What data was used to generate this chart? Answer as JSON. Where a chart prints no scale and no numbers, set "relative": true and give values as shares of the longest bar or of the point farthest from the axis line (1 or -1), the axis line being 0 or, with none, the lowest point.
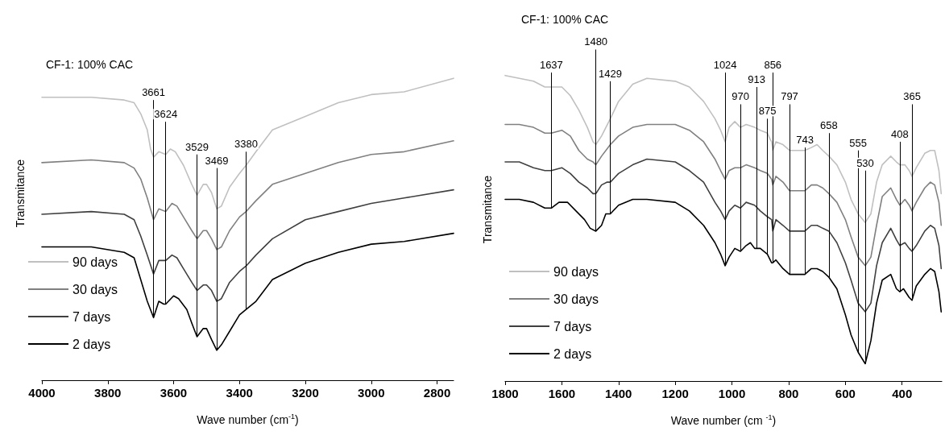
{
  "chart_data": [
    {
      "type": "line",
      "relative": true,
      "title": "CF-1: 100% CAC",
      "xlabel": "Wave number (cm$^{-1}$)",
      "ylabel": "Transmitance",
      "xlim": [
        4000,
        2750
      ],
      "xticks": [
        4000,
        3800,
        3600,
        3400,
        3200,
        3000,
        2800
      ],
      "legend": "bottom left",
      "grid": false,
      "marker": "none",
      "line_style": "solid",
      "series": [
        {
          "name": "90 days",
          "color": "#c0c0c0",
          "x": [
            4000,
            3850,
            3750,
            3720,
            3700,
            3680,
            3670,
            3661,
            3645,
            3624,
            3610,
            3595,
            3570,
            3545,
            3529,
            3510,
            3500,
            3485,
            3469,
            3455,
            3430,
            3400,
            3380,
            3350,
            3300,
            3200,
            3100,
            3000,
            2900,
            2750
          ],
          "values": [
            0.93,
            0.93,
            0.92,
            0.91,
            0.87,
            0.81,
            0.74,
            0.71,
            0.73,
            0.72,
            0.74,
            0.73,
            0.68,
            0.61,
            0.57,
            0.61,
            0.61,
            0.58,
            0.52,
            0.53,
            0.6,
            0.65,
            0.68,
            0.73,
            0.81,
            0.86,
            0.91,
            0.94,
            0.95,
            1.0
          ]
        },
        {
          "name": "30 days",
          "color": "#808080",
          "x": [
            4000,
            3850,
            3750,
            3720,
            3700,
            3680,
            3661,
            3645,
            3624,
            3605,
            3590,
            3570,
            3545,
            3529,
            3510,
            3500,
            3485,
            3469,
            3455,
            3430,
            3400,
            3380,
            3350,
            3300,
            3200,
            3100,
            3000,
            2900,
            2750
          ],
          "values": [
            0.69,
            0.7,
            0.69,
            0.67,
            0.63,
            0.56,
            0.48,
            0.52,
            0.51,
            0.54,
            0.53,
            0.49,
            0.44,
            0.41,
            0.44,
            0.44,
            0.41,
            0.37,
            0.38,
            0.44,
            0.49,
            0.51,
            0.55,
            0.61,
            0.65,
            0.69,
            0.72,
            0.73,
            0.77
          ]
        },
        {
          "name": "7 days",
          "color": "#404040",
          "x": [
            4000,
            3850,
            3750,
            3720,
            3700,
            3680,
            3661,
            3645,
            3624,
            3605,
            3590,
            3570,
            3545,
            3529,
            3510,
            3500,
            3485,
            3469,
            3455,
            3430,
            3400,
            3380,
            3350,
            3300,
            3200,
            3100,
            3000,
            2900,
            2750
          ],
          "values": [
            0.5,
            0.51,
            0.5,
            0.48,
            0.42,
            0.35,
            0.28,
            0.33,
            0.33,
            0.35,
            0.34,
            0.3,
            0.25,
            0.22,
            0.24,
            0.24,
            0.22,
            0.18,
            0.19,
            0.25,
            0.29,
            0.31,
            0.35,
            0.41,
            0.48,
            0.51,
            0.54,
            0.56,
            0.59
          ]
        },
        {
          "name": "2 days",
          "color": "#000000",
          "x": [
            4000,
            3850,
            3750,
            3720,
            3700,
            3680,
            3661,
            3645,
            3630,
            3624,
            3600,
            3585,
            3560,
            3545,
            3529,
            3510,
            3500,
            3485,
            3469,
            3455,
            3430,
            3400,
            3380,
            3350,
            3300,
            3200,
            3100,
            3000,
            2900,
            2750
          ],
          "values": [
            0.38,
            0.38,
            0.36,
            0.34,
            0.26,
            0.18,
            0.12,
            0.18,
            0.17,
            0.17,
            0.2,
            0.19,
            0.15,
            0.1,
            0.05,
            0.08,
            0.08,
            0.04,
            0,
            0.02,
            0.07,
            0.13,
            0.15,
            0.18,
            0.26,
            0.32,
            0.36,
            0.39,
            0.4,
            0.43
          ]
        }
      ],
      "ref_lines": [
        {
          "axis": "x",
          "value": 3661,
          "label": "3661"
        },
        {
          "axis": "x",
          "value": 3624,
          "label": "3624"
        },
        {
          "axis": "x",
          "value": 3529,
          "label": "3529"
        },
        {
          "axis": "x",
          "value": 3469,
          "label": "3469"
        },
        {
          "axis": "x",
          "value": 3380,
          "label": "3380"
        }
      ]
    },
    {
      "type": "line",
      "relative": true,
      "title": "CF-1: 100% CAC",
      "xlabel": "Wave number (cm $^{-1}$)",
      "ylabel": "Transmitance",
      "xlim": [
        1800,
        260
      ],
      "xticks": [
        1800,
        1600,
        1400,
        1200,
        1000,
        800,
        600,
        400
      ],
      "legend": "bottom left",
      "grid": false,
      "marker": "none",
      "line_style": "solid",
      "series": [
        {
          "name": "90 days",
          "color": "#c0c0c0",
          "x": [
            1800,
            1750,
            1700,
            1660,
            1637,
            1600,
            1570,
            1540,
            1510,
            1490,
            1480,
            1460,
            1429,
            1400,
            1350,
            1300,
            1200,
            1150,
            1100,
            1060,
            1040,
            1024,
            1010,
            990,
            970,
            950,
            920,
            900,
            875,
            866,
            860,
            856,
            845,
            820,
            797,
            770,
            743,
            720,
            700,
            680,
            658,
            630,
            600,
            580,
            555,
            530,
            510,
            490,
            470,
            440,
            420,
            408,
            390,
            375,
            365,
            350,
            320,
            300,
            285,
            270,
            262
          ],
          "values": [
            1.0,
            0.99,
            0.98,
            0.96,
            0.96,
            0.96,
            0.93,
            0.88,
            0.82,
            0.77,
            0.76,
            0.79,
            0.85,
            0.91,
            0.97,
            0.99,
            0.98,
            0.96,
            0.91,
            0.85,
            0.81,
            0.77,
            0.82,
            0.84,
            0.82,
            0.83,
            0.82,
            0.81,
            0.8,
            0.78,
            0.77,
            0.74,
            0.77,
            0.76,
            0.74,
            0.74,
            0.74,
            0.75,
            0.76,
            0.74,
            0.72,
            0.69,
            0.63,
            0.57,
            0.52,
            0.49,
            0.52,
            0.63,
            0.69,
            0.72,
            0.7,
            0.69,
            0.69,
            0.67,
            0.65,
            0.68,
            0.73,
            0.74,
            0.74,
            0.67,
            0.59
          ]
        },
        {
          "name": "30 days",
          "color": "#808080",
          "x": [
            1800,
            1750,
            1700,
            1660,
            1637,
            1600,
            1570,
            1540,
            1510,
            1490,
            1480,
            1460,
            1429,
            1400,
            1350,
            1300,
            1200,
            1150,
            1100,
            1060,
            1040,
            1024,
            1010,
            990,
            970,
            950,
            920,
            900,
            875,
            860,
            856,
            845,
            820,
            797,
            770,
            743,
            720,
            700,
            680,
            658,
            630,
            600,
            580,
            555,
            530,
            510,
            490,
            470,
            440,
            420,
            408,
            390,
            375,
            365,
            350,
            320,
            300,
            285,
            270,
            262
          ],
          "values": [
            0.83,
            0.83,
            0.82,
            0.8,
            0.8,
            0.81,
            0.79,
            0.74,
            0.71,
            0.7,
            0.69,
            0.72,
            0.76,
            0.79,
            0.82,
            0.83,
            0.83,
            0.81,
            0.77,
            0.71,
            0.67,
            0.64,
            0.67,
            0.68,
            0.68,
            0.69,
            0.68,
            0.67,
            0.66,
            0.64,
            0.62,
            0.65,
            0.63,
            0.6,
            0.6,
            0.6,
            0.62,
            0.62,
            0.61,
            0.59,
            0.56,
            0.5,
            0.44,
            0.37,
            0.34,
            0.37,
            0.48,
            0.58,
            0.61,
            0.57,
            0.55,
            0.57,
            0.55,
            0.53,
            0.56,
            0.61,
            0.63,
            0.62,
            0.56,
            0.48
          ]
        },
        {
          "name": "7 days",
          "color": "#404040",
          "x": [
            1800,
            1750,
            1700,
            1660,
            1637,
            1600,
            1570,
            1540,
            1510,
            1490,
            1480,
            1460,
            1440,
            1429,
            1400,
            1350,
            1300,
            1200,
            1150,
            1100,
            1060,
            1040,
            1024,
            1010,
            990,
            970,
            950,
            920,
            900,
            875,
            860,
            856,
            845,
            820,
            797,
            770,
            743,
            720,
            700,
            680,
            658,
            630,
            600,
            580,
            555,
            530,
            510,
            490,
            470,
            440,
            420,
            408,
            390,
            375,
            365,
            350,
            320,
            300,
            285,
            270,
            262
          ],
          "values": [
            0.7,
            0.7,
            0.68,
            0.67,
            0.67,
            0.68,
            0.66,
            0.63,
            0.61,
            0.59,
            0.59,
            0.62,
            0.63,
            0.63,
            0.66,
            0.69,
            0.71,
            0.7,
            0.67,
            0.63,
            0.56,
            0.53,
            0.5,
            0.53,
            0.55,
            0.54,
            0.56,
            0.55,
            0.53,
            0.51,
            0.5,
            0.46,
            0.5,
            0.48,
            0.46,
            0.46,
            0.46,
            0.48,
            0.48,
            0.47,
            0.46,
            0.42,
            0.35,
            0.29,
            0.21,
            0.18,
            0.21,
            0.34,
            0.42,
            0.47,
            0.43,
            0.41,
            0.42,
            0.4,
            0.39,
            0.41,
            0.46,
            0.48,
            0.47,
            0.41,
            0.33
          ]
        },
        {
          "name": "2 days",
          "color": "#000000",
          "x": [
            1800,
            1750,
            1700,
            1660,
            1637,
            1610,
            1580,
            1550,
            1520,
            1500,
            1480,
            1460,
            1445,
            1429,
            1400,
            1350,
            1300,
            1200,
            1150,
            1100,
            1060,
            1040,
            1024,
            1010,
            990,
            970,
            950,
            935,
            920,
            900,
            875,
            860,
            856,
            845,
            820,
            797,
            770,
            743,
            720,
            700,
            680,
            658,
            630,
            600,
            580,
            555,
            530,
            510,
            490,
            470,
            440,
            420,
            408,
            395,
            375,
            365,
            350,
            320,
            300,
            285,
            270,
            262
          ],
          "values": [
            0.57,
            0.57,
            0.56,
            0.54,
            0.54,
            0.56,
            0.56,
            0.53,
            0.5,
            0.47,
            0.46,
            0.48,
            0.52,
            0.52,
            0.55,
            0.57,
            0.57,
            0.56,
            0.53,
            0.48,
            0.42,
            0.38,
            0.34,
            0.37,
            0.4,
            0.39,
            0.41,
            0.42,
            0.4,
            0.4,
            0.38,
            0.35,
            0.35,
            0.36,
            0.33,
            0.31,
            0.31,
            0.31,
            0.33,
            0.33,
            0.32,
            0.3,
            0.26,
            0.17,
            0.1,
            0.04,
            0,
            0.08,
            0.21,
            0.29,
            0.31,
            0.26,
            0.25,
            0.26,
            0.23,
            0.22,
            0.27,
            0.31,
            0.33,
            0.32,
            0.25,
            0.18
          ]
        }
      ],
      "ref_lines": [
        {
          "axis": "x",
          "value": 1637,
          "label": "1637"
        },
        {
          "axis": "x",
          "value": 1480,
          "label": "1480"
        },
        {
          "axis": "x",
          "value": 1429,
          "label": "1429"
        },
        {
          "axis": "x",
          "value": 1024,
          "label": "1024"
        },
        {
          "axis": "x",
          "value": 970,
          "label": "970"
        },
        {
          "axis": "x",
          "value": 913,
          "label": "913"
        },
        {
          "axis": "x",
          "value": 875,
          "label": "875"
        },
        {
          "axis": "x",
          "value": 856,
          "label": "856"
        },
        {
          "axis": "x",
          "value": 797,
          "label": "797"
        },
        {
          "axis": "x",
          "value": 743,
          "label": "743"
        },
        {
          "axis": "x",
          "value": 658,
          "label": "658"
        },
        {
          "axis": "x",
          "value": 555,
          "label": "555"
        },
        {
          "axis": "x",
          "value": 530,
          "label": "530"
        },
        {
          "axis": "x",
          "value": 408,
          "label": "408"
        },
        {
          "axis": "x",
          "value": 365,
          "label": "365"
        }
      ]
    }
  ]
}
